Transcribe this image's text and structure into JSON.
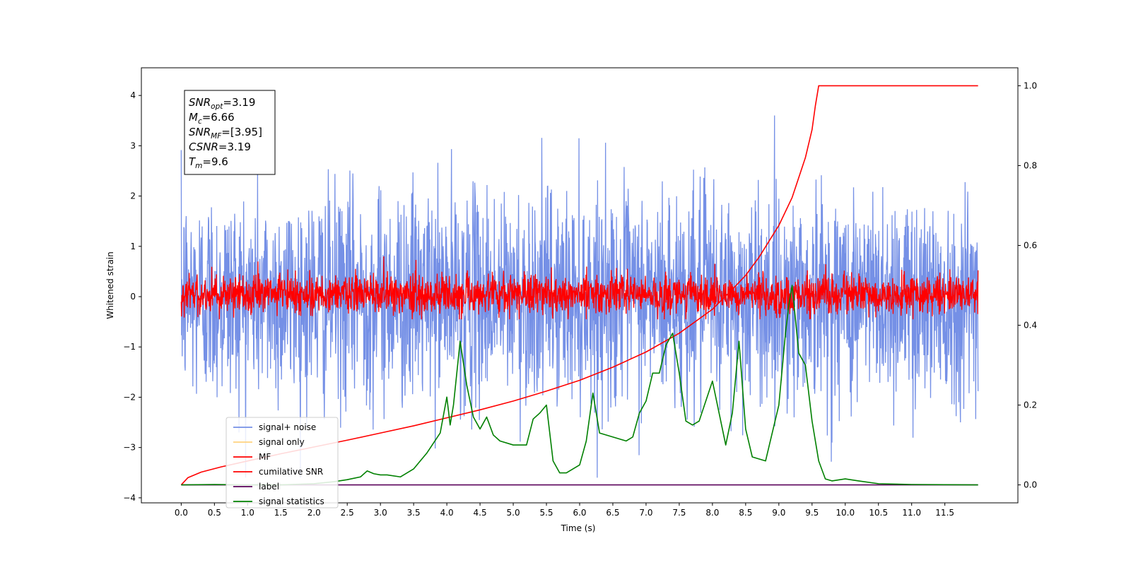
{
  "chart_data": {
    "type": "line",
    "xlabel": "Time (s)",
    "ylabel": "Whitened strain",
    "xlim": [
      -0.6,
      12.6
    ],
    "ylim": [
      -4.1,
      4.55
    ],
    "y2lim": [
      -0.045,
      1.045
    ],
    "grid": false,
    "x_ticks": [
      "0.0",
      "0.5",
      "1.0",
      "1.5",
      "2.0",
      "2.5",
      "3.0",
      "3.5",
      "4.0",
      "4.5",
      "5.0",
      "5.5",
      "6.0",
      "6.5",
      "7.0",
      "7.5",
      "8.0",
      "8.5",
      "9.0",
      "9.5",
      "10.0",
      "10.5",
      "11.0",
      "11.5"
    ],
    "y_ticks": [
      "4",
      "3",
      "2",
      "1",
      "0",
      "−1",
      "−2",
      "−3",
      "−4"
    ],
    "y2_ticks": [
      "1.0",
      "0.8",
      "0.6",
      "0.4",
      "0.2",
      "0.0"
    ],
    "colors": {
      "signal_noise": "#7590e6",
      "signal_only": "#ffd27f",
      "mf": "#ff0000",
      "cumulative_snr": "#ff0000",
      "label": "#5a005a",
      "signal_statistics": "#008000"
    },
    "annotations": [
      {
        "main": "SNR",
        "sub": "opt",
        "value": "=3.19"
      },
      {
        "main": "M",
        "sub": "c",
        "value": "=6.66"
      },
      {
        "main": "SNR",
        "sub": "MF",
        "value": "=[3.95]"
      },
      {
        "main": "CSNR",
        "sub": "",
        "value": "=3.19"
      },
      {
        "main": "T",
        "sub": "m",
        "value": "=9.6"
      }
    ],
    "legend": {
      "position": "lower-left",
      "entries": [
        "signal+ noise",
        "signal only",
        "MF",
        "cumilative SNR",
        "label",
        "signal statistics"
      ]
    },
    "series": [
      {
        "name": "signal+ noise",
        "axis": "left",
        "kind": "noise",
        "x_range": [
          0.0,
          12.0
        ],
        "envelope": [
          -3.6,
          4.15
        ]
      },
      {
        "name": "MF",
        "axis": "left",
        "kind": "noise",
        "x_range": [
          0.0,
          12.0
        ],
        "envelope": [
          -0.45,
          0.8
        ]
      },
      {
        "name": "cumilative SNR",
        "axis": "right",
        "x": [
          0.0,
          0.1,
          0.3,
          0.6,
          1.0,
          1.5,
          2.0,
          2.5,
          3.0,
          3.5,
          4.0,
          4.5,
          5.0,
          5.5,
          6.0,
          6.5,
          7.0,
          7.5,
          8.0,
          8.3,
          8.5,
          8.7,
          9.0,
          9.2,
          9.4,
          9.5,
          9.55,
          9.6,
          10.0,
          11.0,
          12.0
        ],
        "y": [
          0.0,
          0.018,
          0.032,
          0.045,
          0.06,
          0.078,
          0.095,
          0.112,
          0.13,
          0.148,
          0.168,
          0.188,
          0.21,
          0.235,
          0.262,
          0.295,
          0.333,
          0.38,
          0.44,
          0.49,
          0.525,
          0.57,
          0.65,
          0.72,
          0.82,
          0.89,
          0.95,
          1.0,
          1.0,
          1.0,
          1.0
        ]
      },
      {
        "name": "label",
        "axis": "right",
        "x": [
          0.0,
          12.0
        ],
        "y": [
          0.0,
          0.0
        ]
      },
      {
        "name": "signal statistics",
        "axis": "right",
        "x": [
          0.0,
          0.5,
          1.0,
          1.5,
          2.0,
          2.3,
          2.5,
          2.7,
          2.8,
          2.9,
          3.0,
          3.1,
          3.3,
          3.5,
          3.6,
          3.7,
          3.8,
          3.9,
          4.0,
          4.05,
          4.1,
          4.2,
          4.3,
          4.4,
          4.5,
          4.6,
          4.7,
          4.8,
          5.0,
          5.2,
          5.3,
          5.4,
          5.5,
          5.6,
          5.7,
          5.8,
          6.0,
          6.1,
          6.2,
          6.3,
          6.5,
          6.7,
          6.8,
          6.9,
          7.0,
          7.1,
          7.2,
          7.3,
          7.4,
          7.5,
          7.6,
          7.7,
          7.8,
          8.0,
          8.2,
          8.3,
          8.4,
          8.5,
          8.6,
          8.8,
          9.0,
          9.1,
          9.15,
          9.2,
          9.3,
          9.4,
          9.5,
          9.6,
          9.7,
          9.8,
          10.0,
          10.2,
          10.5,
          11.0,
          12.0
        ],
        "y": [
          0.0,
          0.001,
          0.0,
          0.0,
          0.003,
          0.008,
          0.013,
          0.02,
          0.035,
          0.028,
          0.025,
          0.025,
          0.02,
          0.04,
          0.06,
          0.08,
          0.105,
          0.13,
          0.22,
          0.15,
          0.2,
          0.36,
          0.25,
          0.17,
          0.14,
          0.17,
          0.125,
          0.11,
          0.1,
          0.1,
          0.165,
          0.18,
          0.2,
          0.06,
          0.03,
          0.03,
          0.05,
          0.11,
          0.23,
          0.13,
          0.12,
          0.11,
          0.12,
          0.18,
          0.21,
          0.28,
          0.28,
          0.35,
          0.38,
          0.28,
          0.16,
          0.15,
          0.16,
          0.26,
          0.1,
          0.18,
          0.36,
          0.14,
          0.07,
          0.06,
          0.2,
          0.38,
          0.45,
          0.5,
          0.33,
          0.3,
          0.16,
          0.06,
          0.015,
          0.01,
          0.015,
          0.01,
          0.003,
          0.001,
          0.0
        ]
      }
    ]
  }
}
